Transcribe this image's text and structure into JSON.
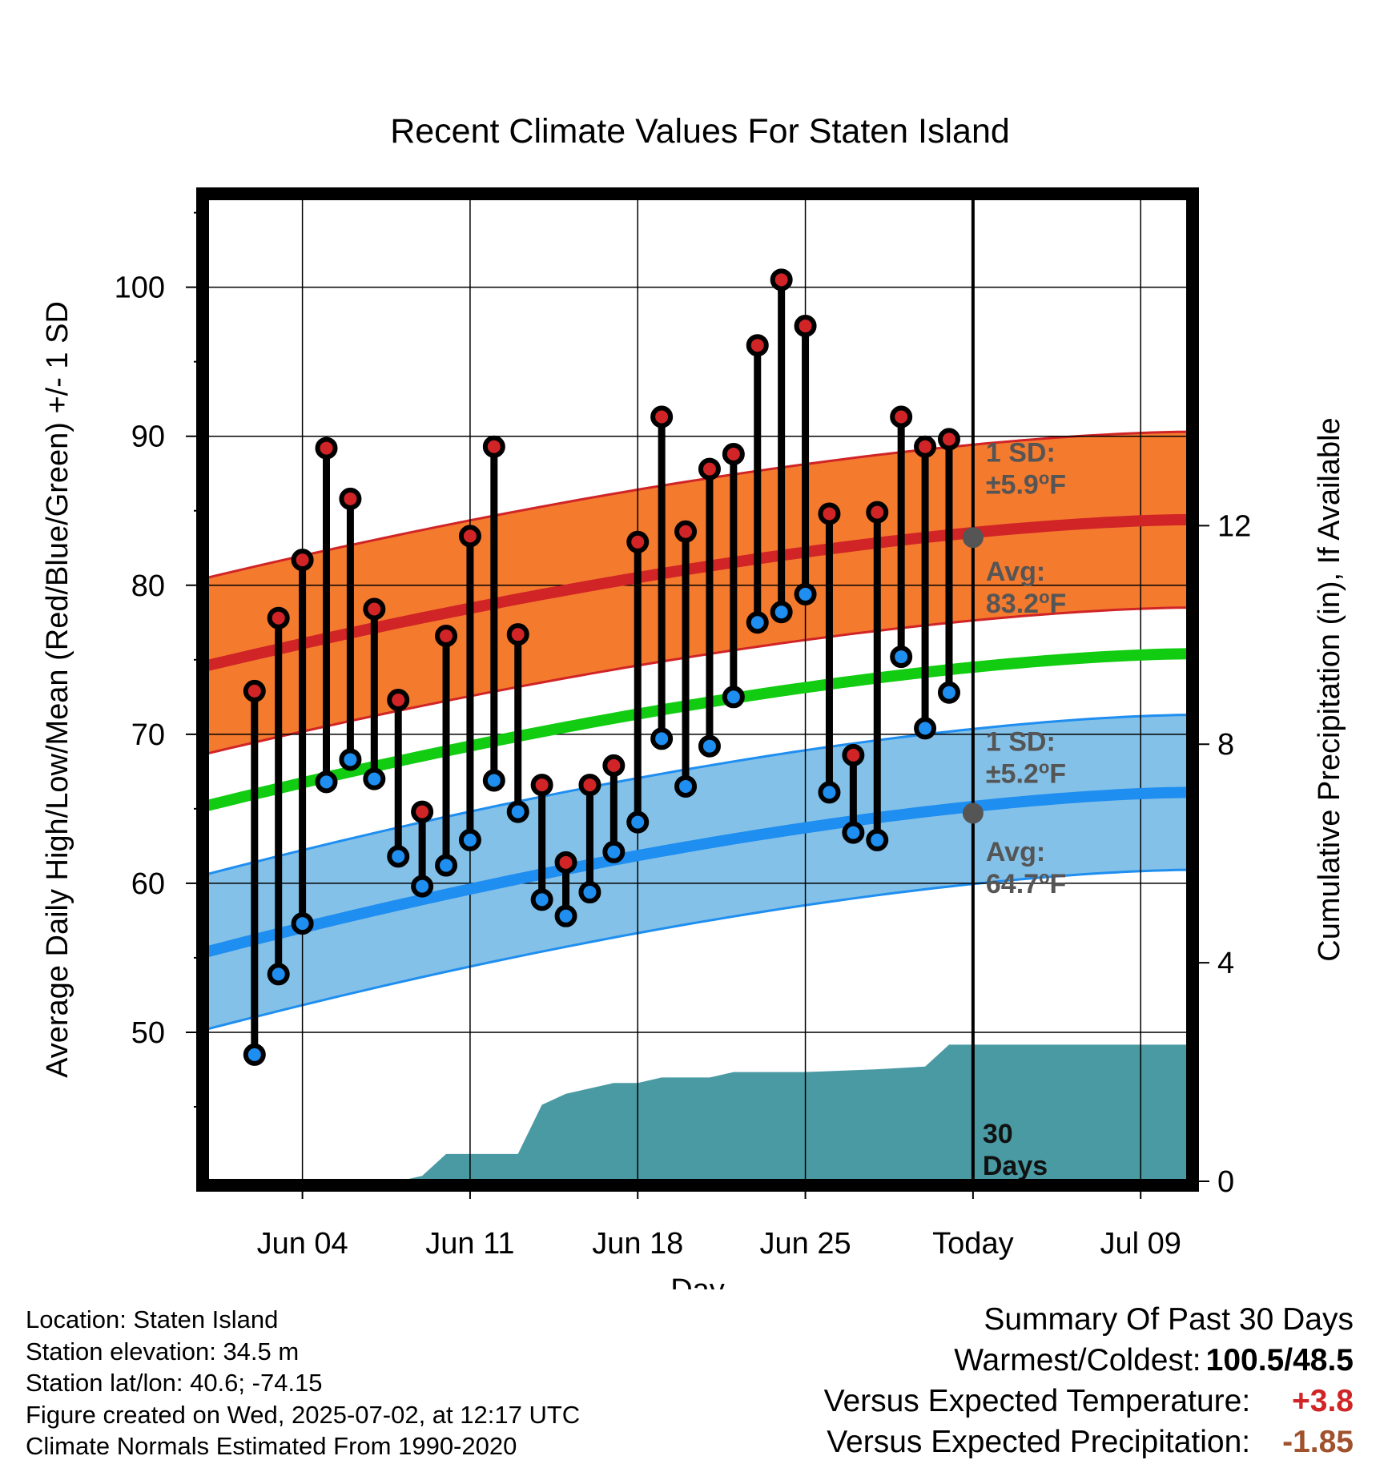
{
  "chart_data": {
    "type": "line",
    "title": "Recent Climate Values For Staten Island",
    "xlabel": "Day",
    "ylabel": "Average Daily High/Low/Mean (Red/Blue/Green) +/- 1 SD",
    "y2label": "Cumulative Precipitation (in), If Available",
    "ylim": [
      40,
      106
    ],
    "y2lim": [
      0,
      18
    ],
    "xlim": [
      "2025-05-31",
      "2025-07-11"
    ],
    "x_ticks": [
      {
        "date": "2025-06-04",
        "label": "Jun 04"
      },
      {
        "date": "2025-06-11",
        "label": "Jun 11"
      },
      {
        "date": "2025-06-18",
        "label": "Jun 18"
      },
      {
        "date": "2025-06-25",
        "label": "Jun 25"
      },
      {
        "date": "2025-07-02",
        "label": "Today"
      },
      {
        "date": "2025-07-09",
        "label": "Jul 09"
      }
    ],
    "y_ticks": [
      50,
      60,
      70,
      80,
      90,
      100
    ],
    "y2_ticks": [
      0,
      4,
      8,
      12
    ],
    "grid": true,
    "today": "2025-07-02",
    "daily": {
      "dates": [
        "2025-06-02",
        "2025-06-03",
        "2025-06-04",
        "2025-06-05",
        "2025-06-06",
        "2025-06-07",
        "2025-06-08",
        "2025-06-09",
        "2025-06-10",
        "2025-06-11",
        "2025-06-12",
        "2025-06-13",
        "2025-06-14",
        "2025-06-15",
        "2025-06-16",
        "2025-06-17",
        "2025-06-18",
        "2025-06-19",
        "2025-06-20",
        "2025-06-21",
        "2025-06-22",
        "2025-06-23",
        "2025-06-24",
        "2025-06-25",
        "2025-06-26",
        "2025-06-27",
        "2025-06-28",
        "2025-06-29",
        "2025-06-30",
        "2025-07-01"
      ],
      "highs": [
        72.9,
        77.8,
        81.7,
        89.2,
        85.8,
        78.4,
        72.3,
        64.8,
        76.6,
        83.3,
        89.3,
        76.7,
        66.6,
        61.4,
        66.6,
        67.9,
        82.9,
        91.3,
        83.6,
        87.8,
        88.8,
        96.1,
        100.5,
        97.4,
        84.8,
        68.6,
        84.9,
        91.3,
        89.3,
        89.8
      ],
      "lows": [
        48.5,
        53.9,
        57.3,
        66.8,
        68.3,
        67.0,
        61.8,
        59.8,
        61.2,
        62.9,
        66.9,
        64.8,
        58.9,
        57.8,
        59.4,
        62.1,
        64.1,
        69.7,
        66.5,
        69.2,
        72.5,
        77.5,
        78.2,
        79.4,
        66.1,
        63.4,
        62.9,
        75.2,
        70.4,
        72.8
      ]
    },
    "normal_high": {
      "start": 74.6,
      "end": 84.4,
      "sd": 5.9
    },
    "normal_low": {
      "start": 55.4,
      "end": 66.1,
      "sd": 5.2
    },
    "normal_mean": {
      "start": 65.2,
      "end": 75.4
    },
    "precip_cumulative": {
      "dates": [
        "2025-05-31",
        "2025-06-08",
        "2025-06-09",
        "2025-06-10",
        "2025-06-13",
        "2025-06-14",
        "2025-06-15",
        "2025-06-16",
        "2025-06-17",
        "2025-06-18",
        "2025-06-19",
        "2025-06-21",
        "2025-06-22",
        "2025-06-25",
        "2025-06-28",
        "2025-06-30",
        "2025-07-01",
        "2025-07-11"
      ],
      "values": [
        0,
        0,
        0.1,
        0.5,
        0.5,
        1.4,
        1.6,
        1.7,
        1.8,
        1.8,
        1.9,
        1.9,
        2.0,
        2.0,
        2.05,
        2.1,
        2.5,
        2.5
      ]
    },
    "annotations": {
      "high_sd_label": "1 SD:",
      "high_sd_value": "±5.9",
      "high_avg_label": "Avg:",
      "high_avg_value": "83.2",
      "high_avg_marker": 83.2,
      "low_sd_label": "1 SD:",
      "low_sd_value": "±5.2",
      "low_avg_label": "Avg:",
      "low_avg_value": "64.7",
      "low_avg_marker": 64.7,
      "unit_sup": "o",
      "unit_letter": "F",
      "days_line1": "30",
      "days_line2": "Days"
    },
    "colors": {
      "high_band": "#f47a2e",
      "high_line": "#d02426",
      "low_band": "#84c1e8",
      "low_line": "#1e8ef0",
      "mean_line": "#11cc11",
      "precip": "#4a9aa4",
      "high_dot": "#d02426",
      "low_dot": "#1e8ef0",
      "avg_marker": "#555555",
      "annotation_text": "#555555"
    }
  },
  "footer": {
    "location": "Location: Staten Island",
    "elevation": "Station elevation: 34.5 m",
    "latlon": "Station lat/lon: 40.6; -74.15",
    "created": "Figure created on Wed, 2025-07-02, at 12:17 UTC",
    "normals": "Climate Normals Estimated From 1990-2020"
  },
  "summary": {
    "title": "Summary Of Past 30 Days",
    "warm_cold_label": "Warmest/Coldest:",
    "warm_cold_value": "100.5/48.5",
    "temp_label": "Versus Expected Temperature:",
    "temp_value": "+3.8",
    "temp_color": "#d02426",
    "precip_label": "Versus Expected Precipitation:",
    "precip_value": "-1.85",
    "precip_color": "#a0522d"
  }
}
